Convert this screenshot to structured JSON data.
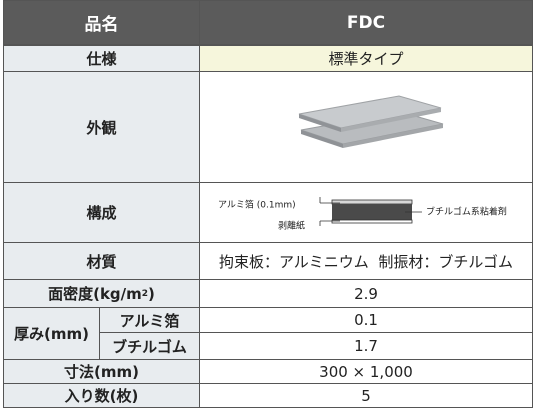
{
  "header": {
    "label": "品名",
    "value": "FDC"
  },
  "rows": [
    {
      "label": "仕様",
      "value": "標準タイプ"
    },
    {
      "label": "外観"
    },
    {
      "label": "構成",
      "diagram": {
        "top": "アルミ箔 (0.1mm)",
        "bottom": "剥離紙",
        "right": "ブチルゴム系粘着剤"
      }
    },
    {
      "label": "材質",
      "value": "拘束板：アルミニウム  制振材：ブチルゴム"
    },
    {
      "label": {
        "text": "面密度(kg/m",
        "sup": "2",
        "tail": ")"
      },
      "value": "2.9"
    },
    {
      "label": "厚み(mm)",
      "sub": [
        {
          "label": "アルミ箔",
          "value": "0.1"
        },
        {
          "label": "ブチルゴム",
          "value": "1.7"
        }
      ]
    },
    {
      "label": "寸法(mm)",
      "value": "300 × 1,000"
    },
    {
      "label": "入り数(枚)",
      "value": "5"
    }
  ]
}
